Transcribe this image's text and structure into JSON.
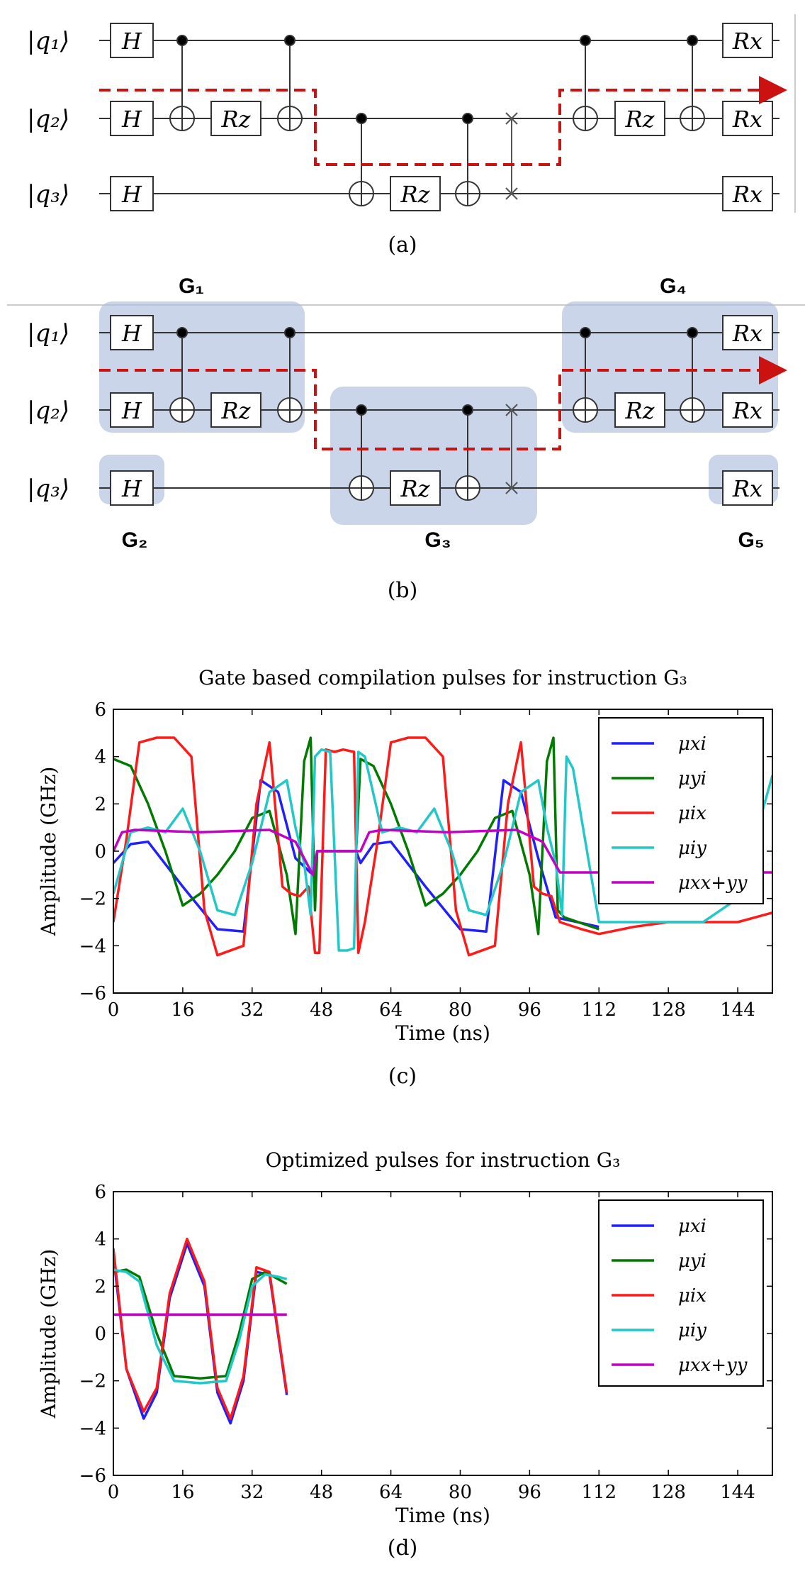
{
  "circuit": {
    "qubits": [
      "|q₁⟩",
      "|q₂⟩",
      "|q₃⟩"
    ],
    "gates": {
      "h": "H",
      "rz": "Rz",
      "rx": "Rx"
    },
    "groups": [
      "G₁",
      "G₂",
      "G₃",
      "G₄",
      "G₅"
    ]
  },
  "captions": {
    "a": "(a)",
    "b": "(b)",
    "c": "(c)",
    "d": "(d)"
  },
  "colors": {
    "dashed_path": "#cc1111",
    "group_fill": "#aebfde",
    "mu_xi": "#1f1fff",
    "mu_yi": "#007a00",
    "mu_ix": "#ff1a1a",
    "mu_iy": "#22c8c8",
    "mu_xx_yy": "#c400c4"
  },
  "chart_data": [
    {
      "type": "line",
      "title": "Gate based compilation pulses for instruction G₃",
      "xlabel": "Time (ns)",
      "ylabel": "Amplitude (GHz)",
      "xlim": [
        0,
        152
      ],
      "ylim": [
        -6,
        6
      ],
      "xticks": [
        0,
        16,
        32,
        48,
        64,
        80,
        96,
        112,
        128,
        144
      ],
      "yticks": [
        -6,
        -4,
        -2,
        0,
        2,
        4,
        6
      ],
      "legend": [
        "μxi",
        "μyi",
        "μix",
        "μiy",
        "μxx+yy"
      ],
      "legend_position": "top-right",
      "series": [
        {
          "name": "μxi",
          "x": [
            0,
            4,
            8,
            16,
            24,
            30,
            34,
            38,
            42,
            46,
            47,
            56,
            57,
            60,
            64,
            72,
            80,
            86,
            90,
            94,
            98,
            102,
            112
          ],
          "y": [
            -0.5,
            0.3,
            0.4,
            -1.5,
            -3.3,
            -3.4,
            3.0,
            2.5,
            -0.3,
            -1.0,
            0,
            0,
            -0.5,
            0.3,
            0.4,
            -1.5,
            -3.3,
            -3.4,
            3.0,
            2.5,
            -0.3,
            -2.8,
            -3.2
          ]
        },
        {
          "name": "μyi",
          "x": [
            0,
            4,
            8,
            12,
            16,
            20,
            24,
            28,
            32,
            36,
            40,
            42,
            44,
            45.5,
            46.5,
            47,
            56,
            57,
            60,
            64,
            68,
            72,
            76,
            80,
            84,
            88,
            92,
            96,
            98,
            100,
            101.5,
            102.5,
            104,
            112
          ],
          "y": [
            3.9,
            3.6,
            2.0,
            0,
            -2.3,
            -1.8,
            -1.0,
            0,
            1.4,
            1.7,
            -1.0,
            -3.5,
            3.8,
            4.8,
            -2.5,
            0,
            0,
            3.9,
            3.6,
            2.0,
            0,
            -2.3,
            -1.8,
            -1.0,
            0,
            1.4,
            1.7,
            -1.0,
            -3.5,
            3.8,
            4.8,
            -2.5,
            -2.8,
            -3.3
          ]
        },
        {
          "name": "μix",
          "x": [
            0,
            3,
            6,
            10,
            14,
            18,
            21,
            24,
            30,
            33,
            36,
            39,
            41,
            43,
            45,
            46.5,
            47.5,
            49,
            51,
            53,
            55.5,
            56.5,
            58,
            61,
            64,
            68,
            72,
            76,
            79,
            82,
            88,
            91,
            94,
            97,
            99,
            101,
            103,
            108,
            112,
            120,
            128,
            136,
            144,
            152
          ],
          "y": [
            -3.0,
            0.5,
            4.6,
            4.8,
            4.8,
            4.0,
            -2.5,
            -4.4,
            -4.0,
            2.0,
            4.6,
            -1.5,
            -1.8,
            -1.9,
            -1.5,
            -4.3,
            -4.3,
            4.3,
            4.2,
            4.3,
            4.2,
            -4.3,
            -3.0,
            0.5,
            4.6,
            4.8,
            4.8,
            4.0,
            -2.5,
            -4.4,
            -4.0,
            2.0,
            4.6,
            -1.5,
            -1.8,
            -1.9,
            -3.0,
            -3.3,
            -3.5,
            -3.2,
            -3.0,
            -3.0,
            -3.0,
            -2.6
          ]
        },
        {
          "name": "μiy",
          "x": [
            0,
            4,
            8,
            12,
            16,
            20,
            24,
            28,
            32,
            36,
            40,
            42,
            44,
            45.5,
            46.5,
            48,
            50,
            52,
            54,
            55.5,
            56.5,
            58,
            62,
            66,
            70,
            74,
            78,
            82,
            86,
            90,
            94,
            98,
            100,
            102,
            103.5,
            104.5,
            106,
            112,
            128,
            136,
            144,
            152
          ],
          "y": [
            -1.8,
            0.8,
            1.0,
            0.8,
            1.8,
            0,
            -2.5,
            -2.7,
            -0.5,
            2.5,
            3.0,
            1.0,
            -0.5,
            -2.7,
            4.0,
            4.3,
            4.2,
            -4.2,
            -4.2,
            -4.1,
            4.2,
            4.0,
            0.8,
            1.0,
            0.8,
            1.8,
            0,
            -2.5,
            -2.7,
            -0.5,
            2.5,
            3.0,
            1.0,
            -0.5,
            -2.7,
            4.0,
            3.5,
            -3.0,
            -3.0,
            -3.0,
            -2.0,
            3.2
          ]
        },
        {
          "name": "μxx+yy",
          "x": [
            0,
            2,
            5,
            20,
            36,
            42,
            46,
            47,
            56,
            57,
            59,
            62,
            77,
            93,
            99,
            103,
            152
          ],
          "y": [
            0,
            0.8,
            0.9,
            0.8,
            0.9,
            0.4,
            -1.0,
            0,
            0,
            0,
            0.8,
            0.9,
            0.8,
            0.9,
            0.4,
            -0.9,
            -0.9
          ]
        }
      ]
    },
    {
      "type": "line",
      "title": "Optimized pulses for instruction G₃",
      "xlabel": "Time (ns)",
      "ylabel": "Amplitude (GHz)",
      "xlim": [
        0,
        152
      ],
      "ylim": [
        -6,
        6
      ],
      "xticks": [
        0,
        16,
        32,
        48,
        64,
        80,
        96,
        112,
        128,
        144
      ],
      "yticks": [
        -6,
        -4,
        -2,
        0,
        2,
        4,
        6
      ],
      "legend": [
        "μxi",
        "μyi",
        "μix",
        "μiy",
        "μxx+yy"
      ],
      "legend_position": "top-right",
      "series": [
        {
          "name": "μxi",
          "x": [
            0,
            3,
            7,
            10,
            13,
            17,
            21,
            24,
            27,
            30,
            33,
            36,
            40
          ],
          "y": [
            3.3,
            -1.5,
            -3.6,
            -2.5,
            1.5,
            3.8,
            2.0,
            -2.5,
            -3.8,
            -2.0,
            2.6,
            2.5,
            -2.6
          ]
        },
        {
          "name": "μyi",
          "x": [
            0,
            3,
            6,
            10,
            14,
            20,
            26,
            29,
            32,
            35,
            38,
            40
          ],
          "y": [
            2.6,
            2.7,
            2.4,
            0,
            -1.8,
            -1.9,
            -1.8,
            0,
            2.3,
            2.6,
            2.3,
            2.1
          ]
        },
        {
          "name": "μix",
          "x": [
            0,
            3,
            7,
            10,
            13,
            17,
            21,
            24,
            27,
            30,
            33,
            36,
            40
          ],
          "y": [
            3.6,
            -1.5,
            -3.3,
            -2.3,
            1.7,
            4.0,
            2.2,
            -2.3,
            -3.6,
            -1.8,
            2.8,
            2.6,
            -2.5
          ]
        },
        {
          "name": "μiy",
          "x": [
            0,
            3,
            6,
            10,
            14,
            20,
            26,
            29,
            32,
            35,
            38,
            40
          ],
          "y": [
            2.7,
            2.6,
            2.2,
            -0.5,
            -2.0,
            -2.1,
            -2.0,
            -0.3,
            2.0,
            2.5,
            2.4,
            2.3
          ]
        },
        {
          "name": "μxx+yy",
          "x": [
            0,
            40
          ],
          "y": [
            0.8,
            0.8
          ]
        }
      ]
    }
  ]
}
